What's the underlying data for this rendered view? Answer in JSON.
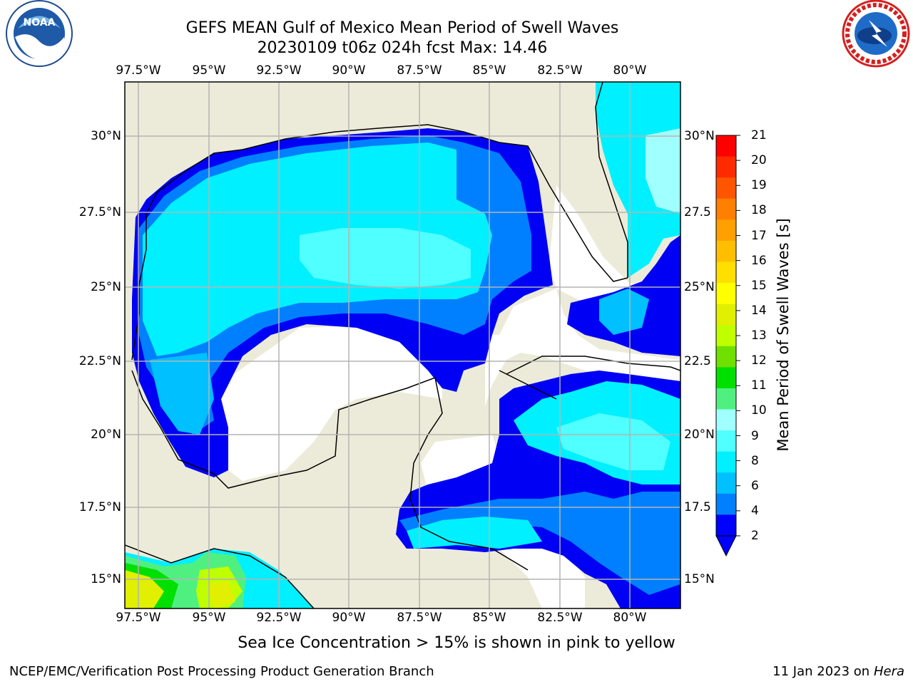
{
  "header": {
    "title_line1": "GEFS MEAN Gulf of Mexico Mean Period of Swell Waves",
    "title_line2": "20230109 t06z 024h fcst   Max: 14.46"
  },
  "logos": {
    "left": {
      "name": "noaa-logo",
      "text": "NOAA",
      "ring_text": "NATIONAL OCEANIC AND ATMOSPHERIC ADMINISTRATION · U.S. DEPARTMENT OF COMMERCE"
    },
    "right": {
      "name": "nws-logo",
      "ring_text": "NATIONAL WEATHER SERVICE"
    }
  },
  "map": {
    "lon_labels": [
      "97.5°W",
      "95°W",
      "92.5°W",
      "90°W",
      "87.5°W",
      "85°W",
      "82.5°W",
      "80°W"
    ],
    "lat_labels_left": [
      "30°N",
      "27.5°N",
      "25°N",
      "22.5°N",
      "20°N",
      "17.5°N",
      "15°N"
    ],
    "lat_labels_right": [
      "30°N",
      "27.5",
      "25°N",
      "22.5",
      "20°N",
      "17.5",
      "15°N"
    ],
    "colors": {
      "land": "#ecebd9",
      "sea_masked": "#ffffff",
      "grid": "#b4b4b4"
    }
  },
  "colorbar": {
    "label": "Mean Period of Swell Waves [s]",
    "ticks": [
      "21",
      "20",
      "19",
      "18",
      "17",
      "16",
      "15",
      "14",
      "13",
      "12",
      "11",
      "10",
      "9",
      "8",
      "6",
      "4",
      "2"
    ],
    "colors": [
      "#ff0000",
      "#ff2a00",
      "#ff5500",
      "#ff7f00",
      "#ff9f00",
      "#ffbf00",
      "#ffdf00",
      "#ffff00",
      "#e0f000",
      "#c0ff00",
      "#70e000",
      "#00e000",
      "#50f080",
      "#a0ffff",
      "#50ffff",
      "#00f0ff",
      "#00c0ff",
      "#0080ff",
      "#0000ff"
    ]
  },
  "footer": {
    "note": "Sea Ice Concentration > 15% is shown in pink to yellow",
    "credit": "NCEP/EMC/Verification Post Processing Product Generation Branch",
    "date": "11 Jan 2023 on ",
    "host": "Hera"
  }
}
